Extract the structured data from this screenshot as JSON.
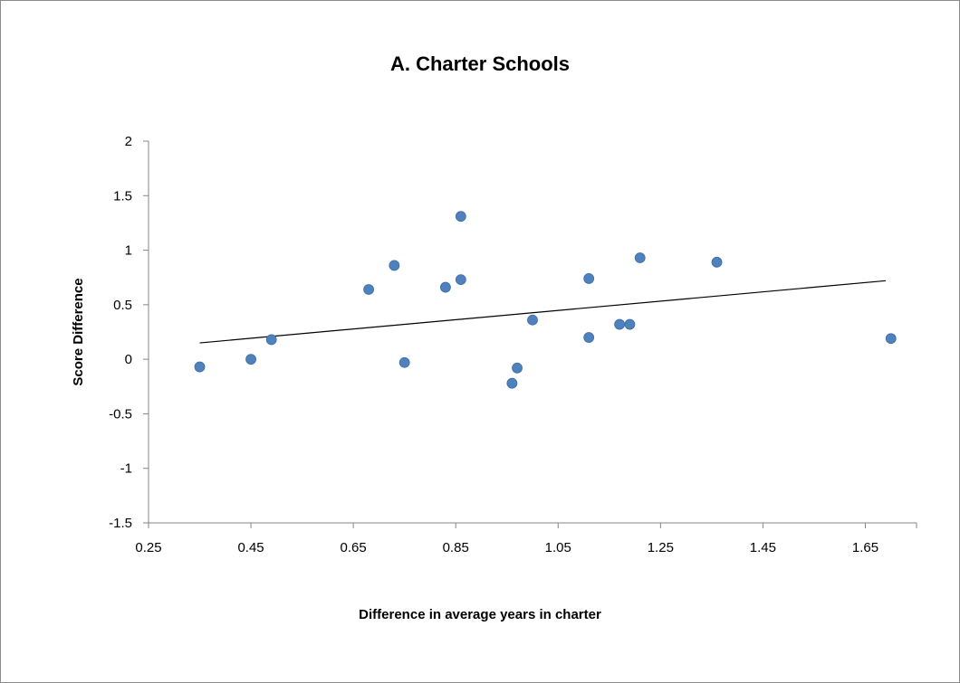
{
  "chart_data": {
    "type": "scatter",
    "title": "A.  Charter Schools",
    "xlabel": "Difference in average years in charter",
    "ylabel": "Score Difference",
    "xlim": [
      0.25,
      1.75
    ],
    "ylim": [
      -1.5,
      2
    ],
    "x_ticks": [
      "0.25",
      "0.45",
      "0.65",
      "0.85",
      "1.05",
      "1.25",
      "1.45",
      "1.65"
    ],
    "y_ticks": [
      "2",
      "1.5",
      "1",
      "0.5",
      "0",
      "-0.5",
      "-1",
      "-1.5"
    ],
    "x_tick_values": [
      0.25,
      0.45,
      0.65,
      0.85,
      1.05,
      1.25,
      1.45,
      1.65
    ],
    "y_tick_values": [
      2,
      1.5,
      1,
      0.5,
      0,
      -0.5,
      -1,
      -1.5
    ],
    "points": [
      {
        "x": 0.35,
        "y": -0.07
      },
      {
        "x": 0.45,
        "y": 0.0
      },
      {
        "x": 0.49,
        "y": 0.18
      },
      {
        "x": 0.68,
        "y": 0.64
      },
      {
        "x": 0.73,
        "y": 0.86
      },
      {
        "x": 0.75,
        "y": -0.03
      },
      {
        "x": 0.83,
        "y": 0.66
      },
      {
        "x": 0.86,
        "y": 0.73
      },
      {
        "x": 0.86,
        "y": 1.31
      },
      {
        "x": 0.96,
        "y": -0.22
      },
      {
        "x": 0.97,
        "y": -0.08
      },
      {
        "x": 1.0,
        "y": 0.36
      },
      {
        "x": 1.11,
        "y": 0.74
      },
      {
        "x": 1.11,
        "y": 0.2
      },
      {
        "x": 1.17,
        "y": 0.32
      },
      {
        "x": 1.19,
        "y": 0.32
      },
      {
        "x": 1.21,
        "y": 0.93
      },
      {
        "x": 1.36,
        "y": 0.89
      },
      {
        "x": 1.7,
        "y": 0.19
      }
    ],
    "trendline": {
      "x": [
        0.35,
        1.69
      ],
      "y": [
        0.15,
        0.72
      ]
    },
    "marker_color": "#4f81bd",
    "marker_edge_color": "#3c6ea4",
    "axis_color": "#868686",
    "line_color": "#000000",
    "grid": false,
    "legend": false
  }
}
